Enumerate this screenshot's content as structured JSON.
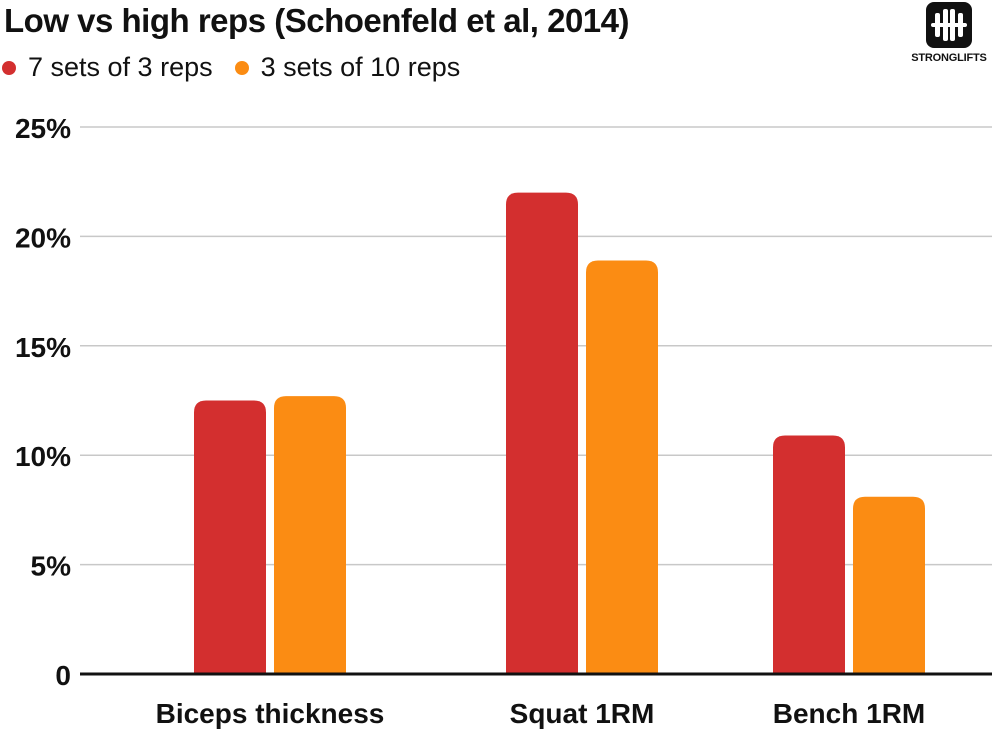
{
  "title": "Low vs high reps (Schoenfeld et al, 2014)",
  "logo": {
    "text": "STRONGLIFTS",
    "icon": "barbell-logo-icon"
  },
  "colors": {
    "series1": "#d32f2f",
    "series2": "#fb8c13",
    "grid": "#c8c8c8",
    "axis": "#111111"
  },
  "chart_data": {
    "type": "bar",
    "title": "Low vs high reps (Schoenfeld et al, 2014)",
    "categories": [
      "Biceps thickness",
      "Squat 1RM",
      "Bench 1RM"
    ],
    "series": [
      {
        "name": "7 sets of 3 reps",
        "values": [
          12.5,
          22.0,
          10.9
        ]
      },
      {
        "name": "3 sets of 10 reps",
        "values": [
          12.7,
          18.9,
          8.1
        ]
      }
    ],
    "ylim": [
      0,
      25
    ],
    "yticks": [
      0,
      5,
      10,
      15,
      20,
      25
    ],
    "ytick_labels": [
      "0",
      "5%",
      "10%",
      "15%",
      "20%",
      "25%"
    ],
    "xlabel": "",
    "ylabel": "",
    "grid": true,
    "legend": "top-left"
  }
}
